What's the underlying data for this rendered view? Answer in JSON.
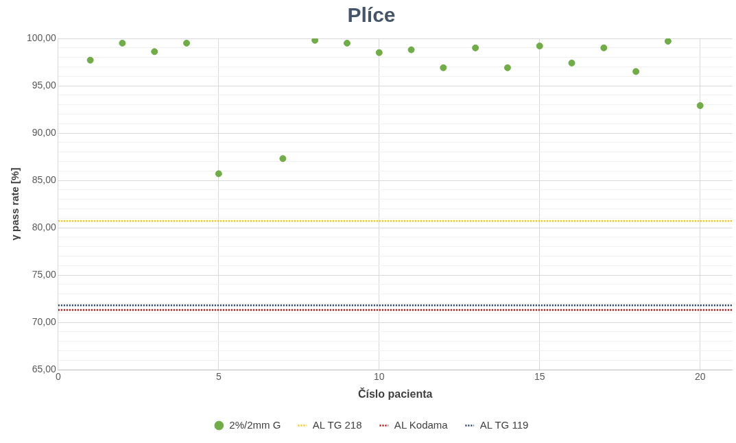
{
  "chart_data": {
    "type": "scatter",
    "title": "Plíce",
    "xlabel": "Číslo pacienta",
    "ylabel": "γ pass rate [%]",
    "xlim": [
      0,
      21
    ],
    "xticks": [
      0,
      5,
      10,
      15,
      20
    ],
    "ylim": [
      65,
      100
    ],
    "yticks": [
      {
        "value": 65,
        "label": "65,00"
      },
      {
        "value": 66,
        "label": null
      },
      {
        "value": 67,
        "label": null
      },
      {
        "value": 68,
        "label": null
      },
      {
        "value": 69,
        "label": null
      },
      {
        "value": 70,
        "label": "70,00"
      },
      {
        "value": 71,
        "label": null
      },
      {
        "value": 72,
        "label": null
      },
      {
        "value": 73,
        "label": null
      },
      {
        "value": 74,
        "label": null
      },
      {
        "value": 75,
        "label": "75,00"
      },
      {
        "value": 76,
        "label": null
      },
      {
        "value": 77,
        "label": null
      },
      {
        "value": 78,
        "label": null
      },
      {
        "value": 79,
        "label": null
      },
      {
        "value": 80,
        "label": "80,00"
      },
      {
        "value": 81,
        "label": null
      },
      {
        "value": 82,
        "label": null
      },
      {
        "value": 83,
        "label": null
      },
      {
        "value": 84,
        "label": null
      },
      {
        "value": 85,
        "label": "85,00"
      },
      {
        "value": 86,
        "label": null
      },
      {
        "value": 87,
        "label": null
      },
      {
        "value": 88,
        "label": null
      },
      {
        "value": 89,
        "label": null
      },
      {
        "value": 90,
        "label": "90,00"
      },
      {
        "value": 91,
        "label": null
      },
      {
        "value": 92,
        "label": null
      },
      {
        "value": 93,
        "label": null
      },
      {
        "value": 94,
        "label": null
      },
      {
        "value": 95,
        "label": "95,00"
      },
      {
        "value": 96,
        "label": null
      },
      {
        "value": 97,
        "label": null
      },
      {
        "value": 98,
        "label": null
      },
      {
        "value": 99,
        "label": null
      },
      {
        "value": 100,
        "label": "100,00"
      }
    ],
    "grid": true,
    "legend": "bottom",
    "marker": "circle",
    "series": [
      {
        "name": "2%/2mm G",
        "color": "#70ad47",
        "x": [
          1,
          2,
          3,
          4,
          5,
          7,
          8,
          9,
          10,
          11,
          12,
          13,
          14,
          15,
          16,
          17,
          18,
          19,
          20
        ],
        "values": [
          97.7,
          99.5,
          98.6,
          99.5,
          85.7,
          87.3,
          99.8,
          99.5,
          98.5,
          98.8,
          96.9,
          99.0,
          96.9,
          99.2,
          97.4,
          99.0,
          96.5,
          99.7,
          92.9
        ]
      },
      {
        "name": "AL TG 218",
        "type": "line",
        "color": "#ffc000",
        "line_style": "dotted",
        "marker": "none",
        "x": [
          0,
          21
        ],
        "values": [
          80.7,
          80.7
        ]
      },
      {
        "name": "AL Kodama",
        "type": "line",
        "color": "#c00000",
        "line_style": "dotted",
        "marker": "none",
        "x": [
          0,
          21
        ],
        "values": [
          71.3,
          71.3
        ]
      },
      {
        "name": "AL TG 119",
        "type": "line",
        "color": "#203864",
        "line_style": "dotted",
        "marker": "none",
        "x": [
          0,
          21
        ],
        "values": [
          71.8,
          71.8
        ]
      }
    ]
  }
}
